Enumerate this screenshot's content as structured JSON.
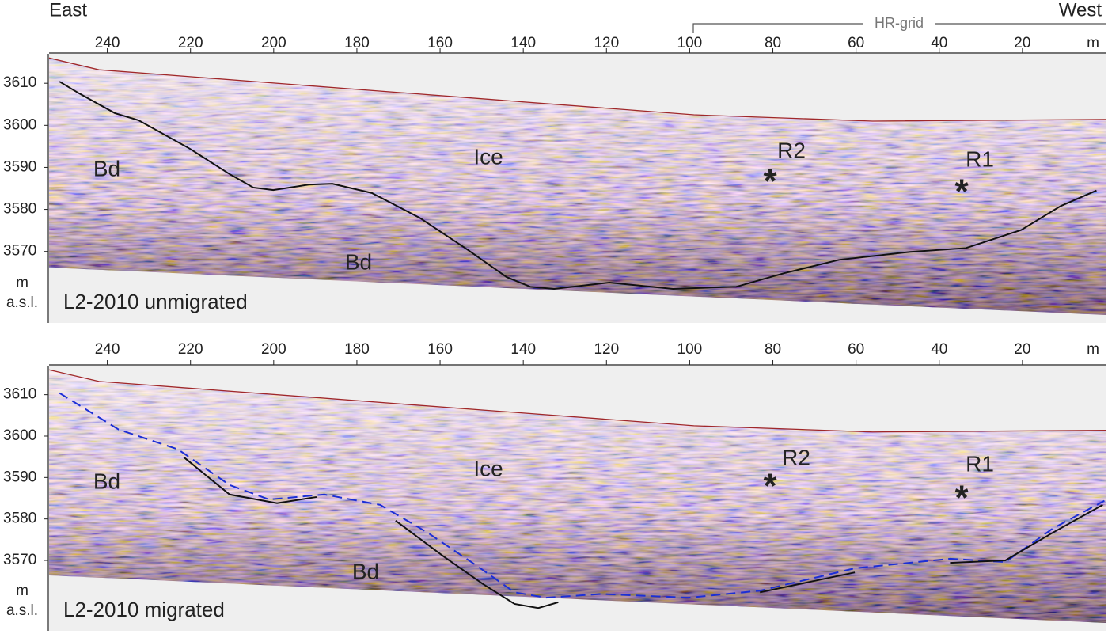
{
  "header": {
    "left": "East",
    "right": "West",
    "bracket": "HR-grid"
  },
  "chart_data": [
    {
      "type": "radargram",
      "title": "L2-2010 unmigrated",
      "xunit": "m",
      "ylabel": [
        "m",
        "a.s.l."
      ],
      "xlim": [
        254,
        0
      ],
      "ylim": [
        3553,
        3617
      ],
      "xticks": [
        240,
        220,
        200,
        180,
        160,
        140,
        120,
        100,
        80,
        60,
        40,
        20
      ],
      "yticks": [
        3570,
        3580,
        3590,
        3600,
        3610
      ],
      "series": [
        {
          "name": "surface",
          "color": "#a0282a",
          "dashed": false,
          "x": [
            254,
            242,
            99,
            56,
            0
          ],
          "values": [
            3616,
            3613.2,
            3602.5,
            3601,
            3601.4
          ]
        },
        {
          "name": "bed",
          "color": "#111111",
          "dashed": false,
          "x": [
            251.5,
            246.8,
            238.2,
            232.5,
            220.1,
            210.6,
            204.9,
            200.1,
            191.6,
            185.9,
            176.4,
            164.9,
            153.5,
            144.0,
            138.3,
            132.6,
            119.3,
            104.0,
            88.8,
            77.4,
            64.1,
            47.0,
            33.6,
            20.3,
            10.8,
            2.2
          ],
          "values": [
            3610.4,
            3607.6,
            3602.9,
            3601.2,
            3594.4,
            3588.4,
            3585.2,
            3584.6,
            3585.9,
            3586.1,
            3583.9,
            3578.0,
            3570.5,
            3563.9,
            3561.6,
            3561.1,
            3562.6,
            3561.1,
            3561.6,
            3564.8,
            3568.0,
            3569.9,
            3570.8,
            3575.1,
            3580.8,
            3584.5
          ]
        }
      ],
      "annotations": [
        {
          "text": "Bd",
          "color": "#111111"
        },
        {
          "text": "Ice",
          "color": "#111111"
        },
        {
          "text": "Bd",
          "color": "#111111"
        },
        {
          "text": "R2",
          "color": "#e8161b"
        },
        {
          "text": "*",
          "color": "#e8161b"
        },
        {
          "text": "R1",
          "color": "#1c2fd6"
        },
        {
          "text": "*",
          "color": "#1c2fd6"
        }
      ]
    },
    {
      "type": "radargram",
      "title": "L2-2010 migrated",
      "xunit": "m",
      "ylabel": [
        "m",
        "a.s.l."
      ],
      "xlim": [
        254,
        0
      ],
      "ylim": [
        3553,
        3617
      ],
      "xticks": [
        240,
        220,
        200,
        180,
        160,
        140,
        120,
        100,
        80,
        60,
        40,
        20
      ],
      "yticks": [
        3570,
        3580,
        3590,
        3600,
        3610
      ],
      "series": [
        {
          "name": "surface",
          "color": "#a0282a",
          "dashed": false,
          "x": [
            254,
            242,
            99,
            56,
            0
          ],
          "values": [
            3616,
            3613.2,
            3602.5,
            3601,
            3601.4
          ]
        },
        {
          "name": "bed-unmigrated",
          "color": "#1c2fd6",
          "dashed": true,
          "x": [
            251.5,
            237.3,
            223.0,
            210.6,
            201.1,
            187.8,
            174.4,
            163.0,
            151.6,
            142.1,
            134.5,
            121.2,
            100.2,
            83.1,
            60.3,
            37.4,
            24.1,
            12.7,
            0.3
          ],
          "values": [
            3610.4,
            3601.6,
            3596.8,
            3588.2,
            3584.7,
            3585.9,
            3583.4,
            3576.7,
            3569.0,
            3562.3,
            3561.0,
            3561.9,
            3561.0,
            3562.7,
            3568.1,
            3570.4,
            3569.6,
            3577.7,
            3584.4
          ]
        },
        {
          "name": "bed-migrated",
          "color": "#111111",
          "dashed": false,
          "x": [
            221.6,
            210.6,
            199.2,
            189.7,
            180.0,
            170.7,
            159.2,
            149.7,
            142.1,
            136.4,
            131.6,
            100.0,
            83.1,
            60.3,
            45.0,
            37.4,
            24.1,
            12.7,
            0.7
          ],
          "values": [
            3594.9,
            3585.9,
            3583.8,
            3585.3,
            null,
            3579.6,
            3571.0,
            3564.3,
            3559.5,
            3558.5,
            3559.9,
            null,
            3562.3,
            3567.1,
            null,
            3569.4,
            3570.0,
            3576.7,
            3583.4
          ]
        }
      ],
      "annotations": [
        {
          "text": "Bd",
          "color": "#111111"
        },
        {
          "text": "Ice",
          "color": "#111111"
        },
        {
          "text": "Bd",
          "color": "#111111"
        },
        {
          "text": "R2",
          "color": "#e8161b"
        },
        {
          "text": "*",
          "color": "#e8161b"
        },
        {
          "text": "R1",
          "color": "#1c2fd6"
        },
        {
          "text": "*",
          "color": "#1c2fd6"
        }
      ]
    }
  ]
}
